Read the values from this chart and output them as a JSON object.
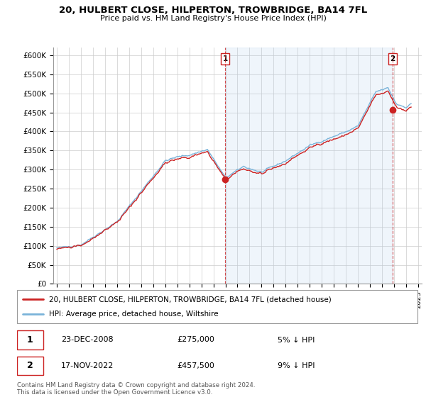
{
  "title": "20, HULBERT CLOSE, HILPERTON, TROWBRIDGE, BA14 7FL",
  "subtitle": "Price paid vs. HM Land Registry's House Price Index (HPI)",
  "ylabel_ticks": [
    "£0",
    "£50K",
    "£100K",
    "£150K",
    "£200K",
    "£250K",
    "£300K",
    "£350K",
    "£400K",
    "£450K",
    "£500K",
    "£550K",
    "£600K"
  ],
  "ytick_values": [
    0,
    50000,
    100000,
    150000,
    200000,
    250000,
    300000,
    350000,
    400000,
    450000,
    500000,
    550000,
    600000
  ],
  "ylim": [
    0,
    620000
  ],
  "legend_line1": "20, HULBERT CLOSE, HILPERTON, TROWBRIDGE, BA14 7FL (detached house)",
  "legend_line2": "HPI: Average price, detached house, Wiltshire",
  "purchase1_date": "23-DEC-2008",
  "purchase1_price": 275000,
  "purchase1_pct": "5% ↓ HPI",
  "purchase2_date": "17-NOV-2022",
  "purchase2_price": 457500,
  "purchase2_pct": "9% ↓ HPI",
  "footer": "Contains HM Land Registry data © Crown copyright and database right 2024.\nThis data is licensed under the Open Government Licence v3.0.",
  "hpi_color": "#7ab3d9",
  "price_color": "#cc2222",
  "dashed_color": "#cc2222",
  "fill_color": "#ddeeff",
  "purchase1_x": 2008.97,
  "purchase2_x": 2022.87,
  "xlim_left": 1994.7,
  "xlim_right": 2025.3
}
